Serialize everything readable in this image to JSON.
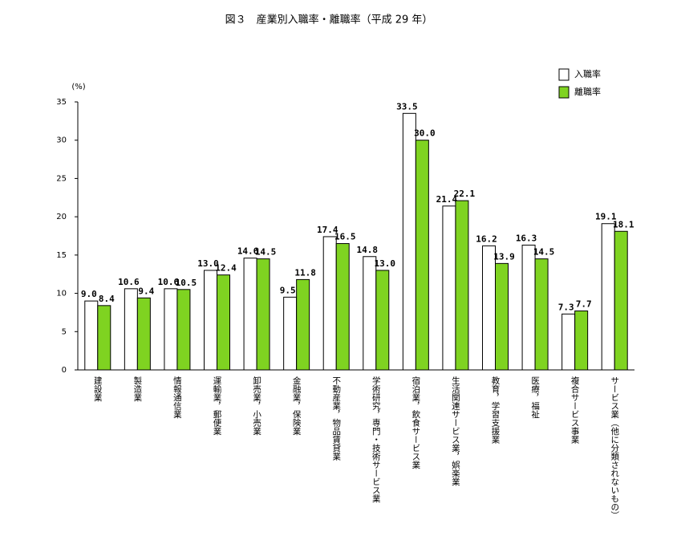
{
  "chart_data": {
    "type": "bar",
    "title": "図３　産業別入職率・離職率（平成 29 年）",
    "y_label": "(%)",
    "categories": [
      "建設業",
      "製造業",
      "情報通信業",
      "運輸業，郵便業",
      "卸売業，小売業",
      "金融業，保険業",
      "不動産業，物品賃貸業",
      "学術研究，専門・技術サービス業",
      "宿泊業，飲食サービス業",
      "生活関連サービス業，娯楽業",
      "教育，学習支援業",
      "医療，福祉",
      "複合サービス事業",
      "サービス業（他に分類されないもの）"
    ],
    "series": [
      {
        "name": "入職率",
        "color": "#ffffff",
        "values": [
          9.0,
          10.6,
          10.6,
          13.0,
          14.6,
          9.5,
          17.4,
          14.8,
          33.5,
          21.4,
          16.2,
          16.3,
          7.3,
          19.1
        ],
        "value_labels": [
          "9.0",
          "10.6",
          "10.6",
          "13.0",
          "14.6",
          "9.5",
          "17.4",
          "14.8",
          "33.5",
          "21.4",
          "16.2",
          "16.3",
          "7.3",
          "19.1"
        ]
      },
      {
        "name": "離職率",
        "color": "#7fd321",
        "values": [
          8.4,
          9.4,
          10.5,
          12.4,
          14.5,
          11.8,
          16.5,
          13.0,
          30.0,
          22.1,
          13.9,
          14.5,
          7.7,
          18.1
        ],
        "value_labels": [
          "8.4",
          "9.4",
          "10.5",
          "12.4",
          "14.5",
          "11.8",
          "16.5",
          "13.0",
          "30.0",
          "22.1",
          "13.9",
          "14.5",
          "7.7",
          "18.1"
        ]
      }
    ],
    "ylim": [
      0,
      35
    ],
    "yticks": [
      0,
      5,
      10,
      15,
      20,
      25,
      30,
      35
    ],
    "grid": false,
    "legend": "top-right"
  }
}
